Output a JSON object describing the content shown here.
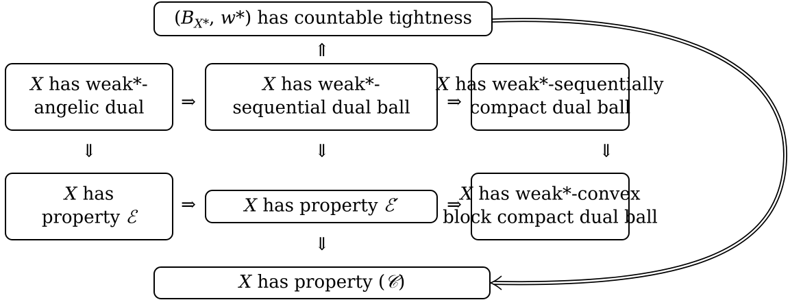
{
  "nodes": [
    {
      "lines": [
        [
          {
            "t": "("
          },
          {
            "t": "B",
            "i": true
          },
          {
            "t": "X*",
            "i": true,
            "sub": true
          },
          {
            "t": ", "
          },
          {
            "t": "w",
            "i": true
          },
          {
            "t": "*) has countable tightness"
          }
        ]
      ]
    },
    {
      "lines": [
        [
          {
            "t": "X",
            "i": true
          },
          {
            "t": " has weak*-"
          }
        ],
        [
          {
            "t": "angelic dual"
          }
        ]
      ]
    },
    {
      "lines": [
        [
          {
            "t": "X",
            "i": true
          },
          {
            "t": " has weak*-"
          }
        ],
        [
          {
            "t": "sequential dual ball"
          }
        ]
      ]
    },
    {
      "lines": [
        [
          {
            "t": "X",
            "i": true
          },
          {
            "t": " has weak*-sequentially"
          }
        ],
        [
          {
            "t": "compact dual ball"
          }
        ]
      ]
    },
    {
      "lines": [
        [
          {
            "t": "X",
            "i": true
          },
          {
            "t": " has"
          }
        ],
        [
          {
            "t": "property "
          },
          {
            "t": "ℰ",
            "i": true
          }
        ]
      ]
    },
    {
      "lines": [
        [
          {
            "t": "X",
            "i": true
          },
          {
            "t": " has property "
          },
          {
            "t": "ℰ′",
            "i": true
          }
        ]
      ]
    },
    {
      "lines": [
        [
          {
            "t": "X",
            "i": true
          },
          {
            "t": " has weak*-convex"
          }
        ],
        [
          {
            "t": "block compact dual ball"
          }
        ]
      ]
    },
    {
      "lines": [
        [
          {
            "t": "X",
            "i": true
          },
          {
            "t": " has property ("
          },
          {
            "t": "𝒞",
            "i": true
          },
          {
            "t": ")"
          }
        ]
      ]
    }
  ],
  "arrows": [
    {
      "symbol": "⇑"
    },
    {
      "symbol": "⇒"
    },
    {
      "symbol": "⇒"
    },
    {
      "symbol": "⇓"
    },
    {
      "symbol": "⇓"
    },
    {
      "symbol": "⇓"
    },
    {
      "symbol": "⇒"
    },
    {
      "symbol": "⇒"
    },
    {
      "symbol": "⇓"
    }
  ]
}
